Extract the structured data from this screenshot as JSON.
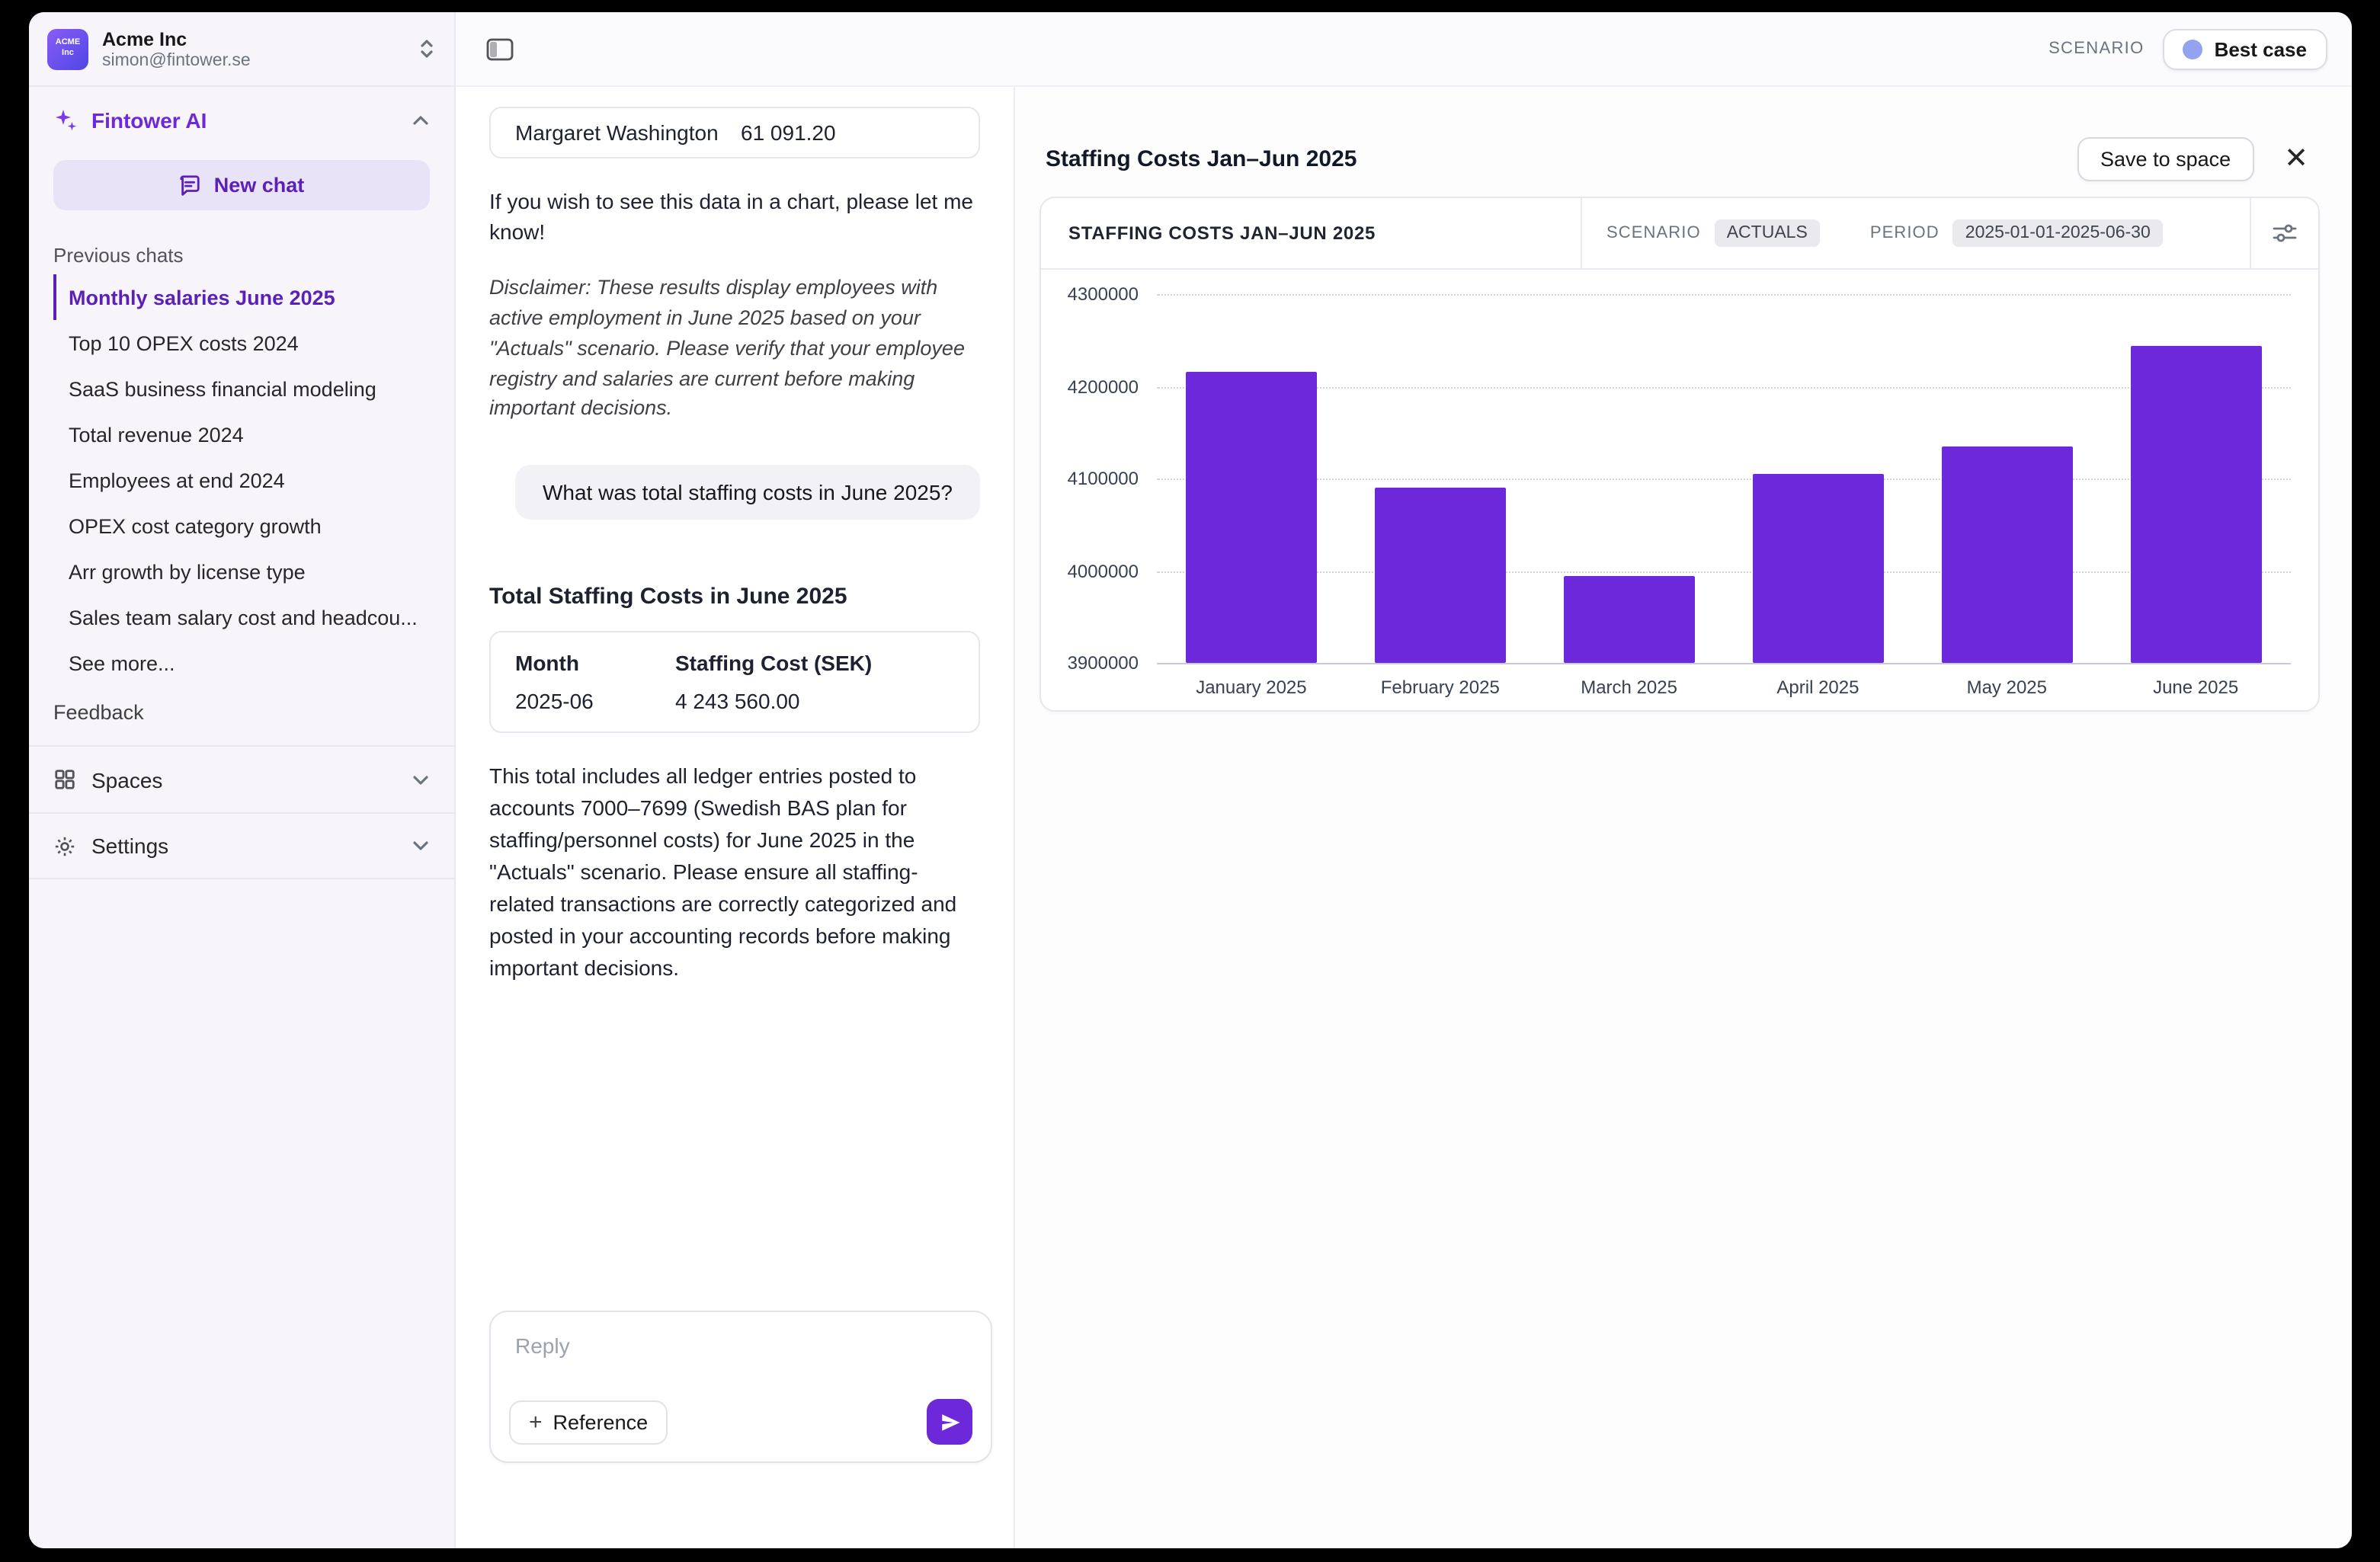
{
  "org": {
    "name": "Acme Inc",
    "email": "simon@fintower.se",
    "logo_line1": "ACME",
    "logo_line2": "Inc"
  },
  "topbar": {
    "scenario_label": "SCENARIO",
    "scenario_value": "Best case"
  },
  "sidebar": {
    "app_title": "Fintower AI",
    "new_chat_label": "New chat",
    "previous_chats_label": "Previous chats",
    "chats": [
      {
        "label": "Monthly salaries June 2025",
        "active": true
      },
      {
        "label": "Top 10 OPEX costs 2024",
        "active": false
      },
      {
        "label": "SaaS business financial modeling",
        "active": false
      },
      {
        "label": "Total revenue 2024",
        "active": false
      },
      {
        "label": "Employees at end 2024",
        "active": false
      },
      {
        "label": "OPEX cost category growth",
        "active": false
      },
      {
        "label": "Arr growth by license type",
        "active": false
      },
      {
        "label": "Sales team salary cost and headcou...",
        "active": false
      },
      {
        "label": "See more...",
        "active": false
      }
    ],
    "feedback_label": "Feedback",
    "spaces_label": "Spaces",
    "settings_label": "Settings"
  },
  "chat": {
    "partial_row": {
      "name": "Margaret Washington",
      "value": "61 091.20"
    },
    "chart_offer": "If you wish to see this data in a chart, please let me know!",
    "disclaimer": "Disclaimer: These results display employees with active employment in June 2025 based on your \"Actuals\" scenario. Please verify that your employee registry and salaries are current before making important decisions.",
    "user_message": "What was total staffing costs in June 2025?",
    "answer_heading": "Total Staffing Costs in June 2025",
    "table": {
      "headers": [
        "Month",
        "Staffing Cost (SEK)"
      ],
      "rows": [
        [
          "2025-06",
          "4 243 560.00"
        ]
      ]
    },
    "answer_note": "This total includes all ledger entries posted to accounts 7000–7699 (Swedish BAS plan for staffing/personnel costs) for June 2025 in the \"Actuals\" scenario. Please ensure all staffing-related transactions are correctly categorized and posted in your accounting records before making important decisions.",
    "reply_placeholder": "Reply",
    "reference_label": "Reference"
  },
  "panel": {
    "title": "Staffing Costs Jan–Jun 2025",
    "save_button_label": "Save to space",
    "card_title": "STAFFING COSTS JAN–JUN 2025",
    "scenario_label": "SCENARIO",
    "scenario_value": "ACTUALS",
    "period_label": "PERIOD",
    "period_value": "2025-01-01-2025-06-30"
  },
  "icons": {
    "plus": "+",
    "close": "✕"
  },
  "colors": {
    "accent": "#6d28d9",
    "bar": "#6d28d9",
    "scenario_dot": "#94a3f0",
    "sidebar_bg": "#f7f5fa",
    "badge_bg": "#e9e9ee"
  },
  "chart_data": {
    "type": "bar",
    "title": "STAFFING COSTS JAN–JUN 2025",
    "categories": [
      "January 2025",
      "February 2025",
      "March 2025",
      "April 2025",
      "May 2025",
      "June 2025"
    ],
    "values": [
      4215000,
      4090000,
      3995000,
      4105000,
      4135000,
      4243560
    ],
    "xlabel": "",
    "ylabel": "",
    "ylim": [
      3900000,
      4300000
    ],
    "yticks": [
      3900000,
      4000000,
      4100000,
      4200000,
      4300000
    ],
    "bar_color": "#6d28d9",
    "grid": "horizontal-dotted",
    "legend": "none",
    "scenario": "ACTUALS",
    "period": "2025-01-01-2025-06-30"
  }
}
